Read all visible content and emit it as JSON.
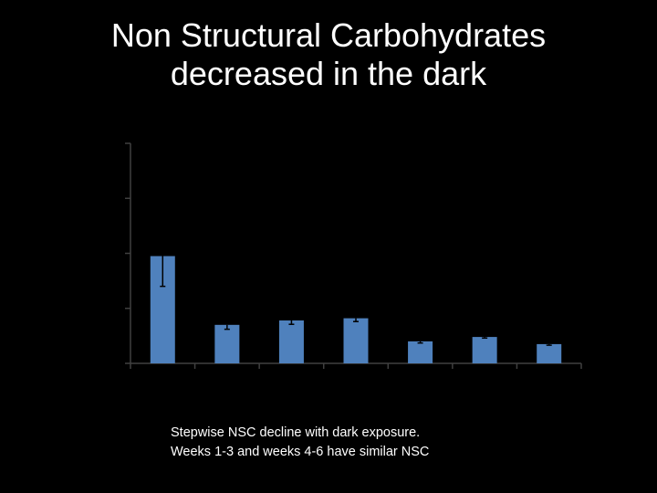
{
  "slide": {
    "title_line1": "Non Structural Carbohydrates",
    "title_line2": "decreased in the dark",
    "caption_line1": "Stepwise NSC decline with dark exposure.",
    "caption_line2": "Weeks 1-3 and weeks 4-6 have similar NSC"
  },
  "chart_data": {
    "type": "bar",
    "categories": [
      "",
      "",
      "",
      "",
      "",
      "",
      ""
    ],
    "values": [
      1.95,
      0.7,
      0.78,
      0.82,
      0.4,
      0.48,
      0.35
    ],
    "errors": [
      0.55,
      0.08,
      0.07,
      0.06,
      0.03,
      0.02,
      0.02
    ],
    "ylim": [
      0,
      4
    ],
    "ytick_count": 5,
    "title": "",
    "xlabel": "",
    "ylabel": "",
    "grid": false,
    "colors": {
      "bar": "#4f81bd",
      "axis": "#404040",
      "errorbar": "#000000",
      "background": "#000000",
      "text": "#ffffff"
    }
  }
}
